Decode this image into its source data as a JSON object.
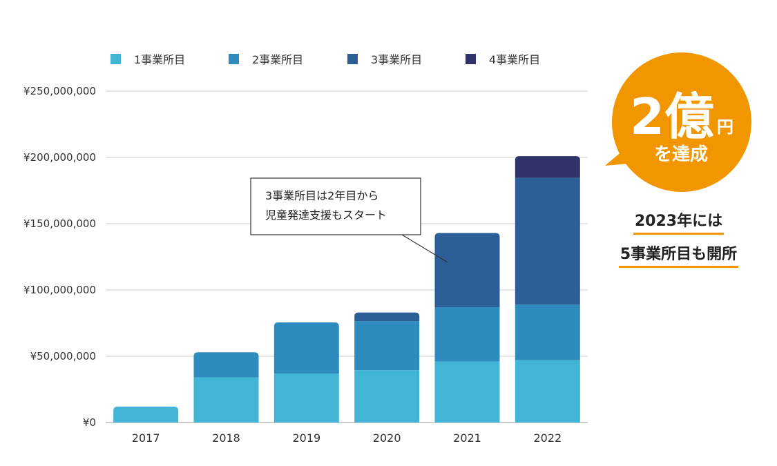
{
  "chart_data": {
    "type": "bar",
    "stacked": true,
    "categories": [
      "2017",
      "2018",
      "2019",
      "2020",
      "2021",
      "2022"
    ],
    "series": [
      {
        "name": "1事業所目",
        "color": "#42b5d6",
        "values": [
          12000000,
          34000000,
          37000000,
          39500000,
          46000000,
          47000000
        ]
      },
      {
        "name": "2事業所目",
        "color": "#2e8bbd",
        "values": [
          0,
          19000000,
          38500000,
          37000000,
          41000000,
          42000000
        ]
      },
      {
        "name": "3事業所目",
        "color": "#2c5e97",
        "values": [
          0,
          0,
          0,
          6500000,
          56000000,
          95500000
        ]
      },
      {
        "name": "4事業所目",
        "color": "#2f3369",
        "values": [
          0,
          0,
          0,
          0,
          0,
          16500000
        ]
      }
    ],
    "ylim": [
      0,
      250000000
    ],
    "yticks": [
      0,
      50000000,
      100000000,
      150000000,
      200000000,
      250000000
    ],
    "ytick_labels": [
      "¥0",
      "¥50,000,000",
      "¥100,000,000",
      "¥150,000,000",
      "¥200,000,000",
      "¥250,000,000"
    ],
    "grid": true,
    "legend_position": "top",
    "annotation": {
      "lines": [
        "3事業所目は2年目から",
        "児童発達支援もスタート"
      ],
      "target_category": "2021"
    }
  },
  "badge": {
    "big": "2億",
    "unit": "円",
    "sub": "を達成",
    "color": "#f29600"
  },
  "note": {
    "lines": [
      "2023年には",
      "5事業所目も開所"
    ],
    "underline_color": "#f29600"
  }
}
